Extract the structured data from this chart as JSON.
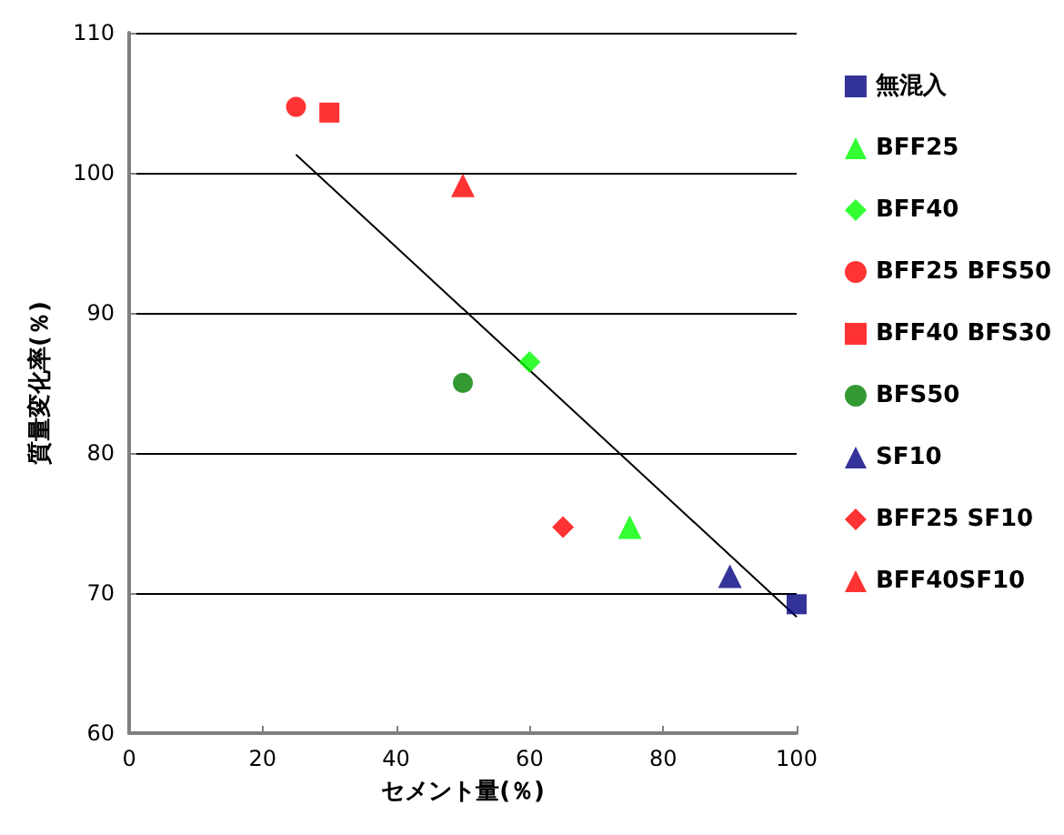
{
  "chart_data": {
    "type": "scatter",
    "xlabel": "セメント量(％)",
    "ylabel": "質量変化率(％)",
    "xlim": [
      0,
      100
    ],
    "xticks": [
      0,
      20,
      40,
      60,
      80,
      100
    ],
    "ylim": [
      60,
      110
    ],
    "yticks": [
      60,
      70,
      80,
      90,
      100,
      110
    ],
    "grid": "y",
    "legend": "right",
    "series": [
      {
        "name": "無混入",
        "color": "#000080",
        "marker": "square",
        "x": [
          100
        ],
        "values": [
          69.2
        ]
      },
      {
        "name": "BFF25",
        "color": "#00ff00",
        "marker": "triangle",
        "x": [
          75
        ],
        "values": [
          74.7
        ]
      },
      {
        "name": "BFF40",
        "color": "#00ff00",
        "marker": "diamond",
        "x": [
          60
        ],
        "values": [
          86.5
        ]
      },
      {
        "name": "BFF25 BFS50",
        "color": "#ff0000",
        "marker": "circle",
        "x": [
          25
        ],
        "values": [
          104.7
        ]
      },
      {
        "name": "BFF40 BFS30",
        "color": "#ff0000",
        "marker": "square",
        "x": [
          30
        ],
        "values": [
          104.3
        ]
      },
      {
        "name": "BFS50",
        "color": "#008000",
        "marker": "circle",
        "x": [
          50
        ],
        "values": [
          85
        ]
      },
      {
        "name": "SF10",
        "color": "#000080",
        "marker": "triangle",
        "x": [
          90
        ],
        "values": [
          71.2
        ]
      },
      {
        "name": "BFF25 SF10",
        "color": "#ff0000",
        "marker": "diamond",
        "x": [
          65
        ],
        "values": [
          74.7
        ]
      },
      {
        "name": "BFF40SF10",
        "color": "#ff0000",
        "marker": "triangle",
        "x": [
          50
        ],
        "values": [
          99.1
        ]
      },
      {
        "type": "line",
        "color": "#000000",
        "marker": "none",
        "x": [
          25,
          100
        ],
        "values": [
          101.3,
          68.3
        ]
      }
    ]
  }
}
